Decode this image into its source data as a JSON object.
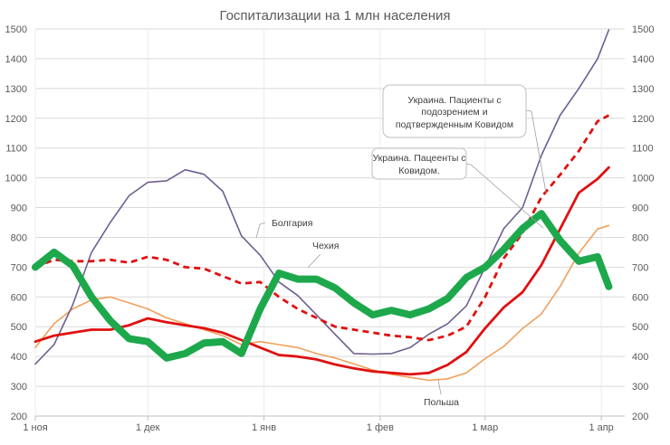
{
  "chart_data": {
    "type": "line",
    "title": "Госпитализации на 1 млн населения",
    "xlabel": "",
    "ylabel": "",
    "ylim": [
      200,
      1500
    ],
    "yticks": [
      200,
      300,
      400,
      500,
      600,
      700,
      800,
      900,
      1000,
      1100,
      1200,
      1300,
      1400,
      1500
    ],
    "xticks": [
      {
        "date": "11-01",
        "label": "1 ноя"
      },
      {
        "date": "12-01",
        "label": "1 дек"
      },
      {
        "date": "01-01",
        "label": "1 янв"
      },
      {
        "date": "02-01",
        "label": "1 фев"
      },
      {
        "date": "03-01",
        "label": "1 мар"
      },
      {
        "date": "04-01",
        "label": "1 апр"
      }
    ],
    "grid": true,
    "secondary_y_axis_mirrored": true,
    "x": [
      "11-01",
      "11-06",
      "11-11",
      "11-16",
      "11-21",
      "11-26",
      "12-01",
      "12-06",
      "12-11",
      "12-16",
      "12-21",
      "12-26",
      "12-31",
      "01-05",
      "01-10",
      "01-15",
      "01-20",
      "01-25",
      "01-30",
      "02-04",
      "02-09",
      "02-14",
      "02-19",
      "02-24",
      "03-01",
      "03-06",
      "03-11",
      "03-16",
      "03-21",
      "03-26",
      "03-31",
      "04-03"
    ],
    "series": [
      {
        "name": "Болгария",
        "color": "#6e5f8f",
        "style": "solid-thin",
        "values": [
          375,
          440,
          574,
          750,
          850,
          940,
          985,
          990,
          1027,
          1012,
          955,
          805,
          740,
          650,
          605,
          540,
          474,
          410,
          408,
          410,
          430,
          475,
          510,
          570,
          700,
          830,
          900,
          1075,
          1210,
          1300,
          1400,
          1497
        ]
      },
      {
        "name": "Украина. Пациенты с подозрением и подтвержденным Ковидом",
        "color": "#e01010",
        "style": "dashed",
        "values": [
          700,
          725,
          720,
          720,
          725,
          715,
          735,
          725,
          700,
          695,
          670,
          645,
          650,
          600,
          560,
          530,
          500,
          490,
          480,
          470,
          465,
          455,
          470,
          500,
          600,
          730,
          815,
          935,
          1010,
          1090,
          1190,
          1210
        ]
      },
      {
        "name": "Украина. Пацеенты с Ковидом.",
        "label": "Украина. Пацеенты с Ковидом.",
        "color": "#e01010",
        "style": "solid",
        "values": [
          450,
          470,
          480,
          490,
          490,
          505,
          528,
          515,
          505,
          495,
          480,
          455,
          430,
          405,
          400,
          390,
          373,
          360,
          350,
          345,
          340,
          345,
          372,
          415,
          495,
          565,
          616,
          707,
          828,
          950,
          996,
          1035
        ]
      },
      {
        "name": "Польша",
        "color": "#f0a05a",
        "style": "solid-thin",
        "values": [
          430,
          510,
          560,
          590,
          600,
          580,
          560,
          530,
          510,
          490,
          470,
          440,
          450,
          440,
          430,
          410,
          395,
          375,
          355,
          340,
          330,
          320,
          325,
          345,
          393,
          434,
          494,
          543,
          635,
          747,
          828,
          840
        ]
      },
      {
        "name": "Чехия",
        "color": "#1da84c",
        "style": "thick",
        "values": [
          700,
          750,
          705,
          600,
          520,
          460,
          450,
          395,
          410,
          445,
          450,
          410,
          560,
          680,
          660,
          660,
          630,
          580,
          540,
          555,
          540,
          560,
          595,
          665,
          700,
          760,
          830,
          880,
          790,
          720,
          735,
          635
        ]
      }
    ],
    "annotations": {
      "bulgaria": "Болгария",
      "czech": "Чехия",
      "poland": "Польша",
      "ukraine_suspected_l1": "Украина. Пациенты с",
      "ukraine_suspected_l2": "подозрением и",
      "ukraine_suspected_l3": "подтвержденным Ковидом",
      "ukraine_covid_l1": "Украина. Пацеенты с",
      "ukraine_covid_l2": "Ковидом."
    }
  }
}
